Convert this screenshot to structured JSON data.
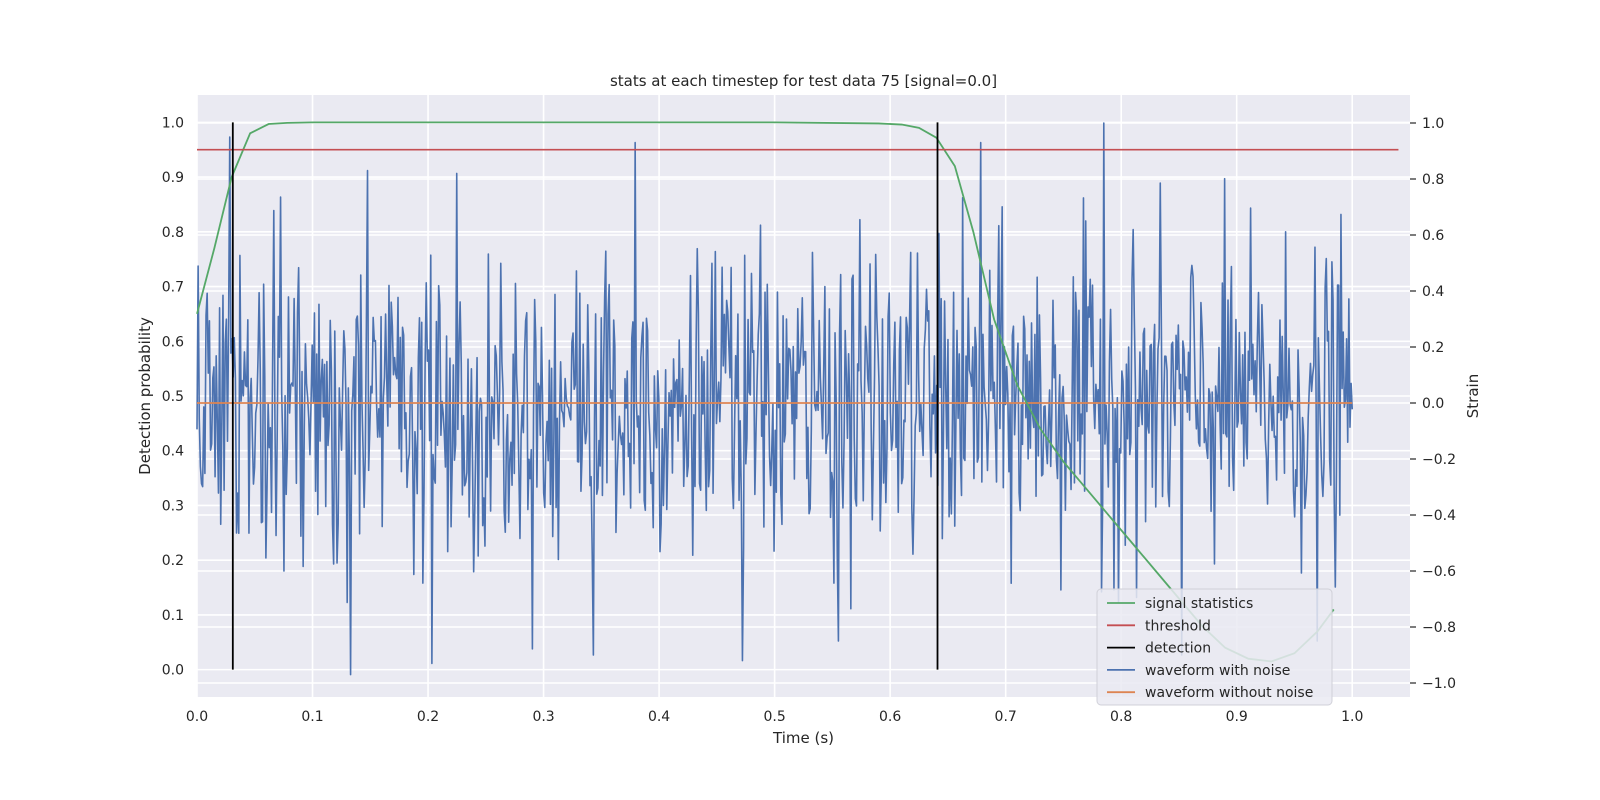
{
  "chart_data": {
    "type": "line",
    "title": "stats at each timestep for test data 75 [signal=0.0]",
    "xlabel": "Time (s)",
    "ylabel": "Detection probability",
    "y2label": "Strain",
    "xlim": [
      0.0,
      1.05
    ],
    "ylim": [
      -0.05,
      1.05
    ],
    "y2lim": [
      -1.05,
      1.1
    ],
    "xticks": [
      0.0,
      0.1,
      0.2,
      0.3,
      0.4,
      0.5,
      0.6,
      0.7,
      0.8,
      0.9,
      1.0
    ],
    "xtick_labels": [
      "0.0",
      "0.1",
      "0.2",
      "0.3",
      "0.4",
      "0.5",
      "0.6",
      "0.7",
      "0.8",
      "0.9",
      "1.0"
    ],
    "yticks": [
      0.0,
      0.1,
      0.2,
      0.3,
      0.4,
      0.5,
      0.6,
      0.7,
      0.8,
      0.9,
      1.0
    ],
    "ytick_labels": [
      "0.0",
      "0.1",
      "0.2",
      "0.3",
      "0.4",
      "0.5",
      "0.6",
      "0.7",
      "0.8",
      "0.9",
      "1.0"
    ],
    "y2ticks": [
      1.0,
      0.8,
      0.6,
      0.4,
      0.2,
      0.0,
      -0.2,
      -0.4,
      -0.6,
      -0.8,
      -1.0
    ],
    "y2tick_labels": [
      "1.0",
      "0.8",
      "0.6",
      "0.4",
      "0.2",
      "0.0",
      "−0.2",
      "−0.4",
      "−0.6",
      "−0.8",
      "−1.0"
    ],
    "grid": true,
    "legend_position": "bottom-right",
    "series": [
      {
        "name": "signal statistics",
        "axis": "left",
        "color": "#55a868",
        "x": [
          0.0,
          0.015,
          0.03,
          0.046,
          0.062,
          0.078,
          0.1,
          0.2,
          0.3,
          0.4,
          0.5,
          0.59,
          0.61,
          0.625,
          0.64,
          0.656,
          0.672,
          0.69,
          0.71,
          0.73,
          0.75,
          0.77,
          0.79,
          0.81,
          0.83,
          0.85,
          0.87,
          0.89,
          0.91,
          0.93,
          0.95,
          0.97,
          0.984
        ],
        "y": [
          0.65,
          0.77,
          0.9,
          0.98,
          0.997,
          0.999,
          1.0,
          1.0,
          1.0,
          1.0,
          1.0,
          0.998,
          0.996,
          0.99,
          0.972,
          0.92,
          0.8,
          0.64,
          0.52,
          0.44,
          0.38,
          0.33,
          0.28,
          0.23,
          0.18,
          0.13,
          0.08,
          0.04,
          0.02,
          0.015,
          0.03,
          0.07,
          0.11
        ]
      },
      {
        "name": "threshold",
        "axis": "left",
        "color": "#c44e52",
        "x": [
          0.0,
          1.04
        ],
        "y": [
          0.95,
          0.95
        ]
      },
      {
        "name": "detection",
        "axis": "left",
        "color": "#000000",
        "vlines": [
          0.031,
          0.641
        ],
        "ymin": 0.0,
        "ymax": 1.0
      },
      {
        "name": "waveform with noise",
        "axis": "right",
        "color": "#4c72b0",
        "x_start": 0.0,
        "x_end": 1.0,
        "samples": 1024,
        "peaks": [
          {
            "x": 0.028,
            "y": 0.95
          },
          {
            "x": 0.133,
            "y": -0.97
          },
          {
            "x": 0.148,
            "y": 0.83
          },
          {
            "x": 0.203,
            "y": -0.93
          },
          {
            "x": 0.225,
            "y": 0.82
          },
          {
            "x": 0.343,
            "y": -0.9
          },
          {
            "x": 0.379,
            "y": 0.93
          },
          {
            "x": 0.472,
            "y": -0.92
          },
          {
            "x": 0.555,
            "y": -0.85
          },
          {
            "x": 0.678,
            "y": 0.93
          },
          {
            "x": 0.785,
            "y": 1.0
          },
          {
            "x": 0.852,
            "y": -0.9
          },
          {
            "x": 0.97,
            "y": -0.85
          }
        ]
      },
      {
        "name": "waveform without noise",
        "axis": "right",
        "color": "#dd8452",
        "x": [
          0.0,
          1.0
        ],
        "y": [
          0.0,
          0.0
        ]
      }
    ]
  }
}
